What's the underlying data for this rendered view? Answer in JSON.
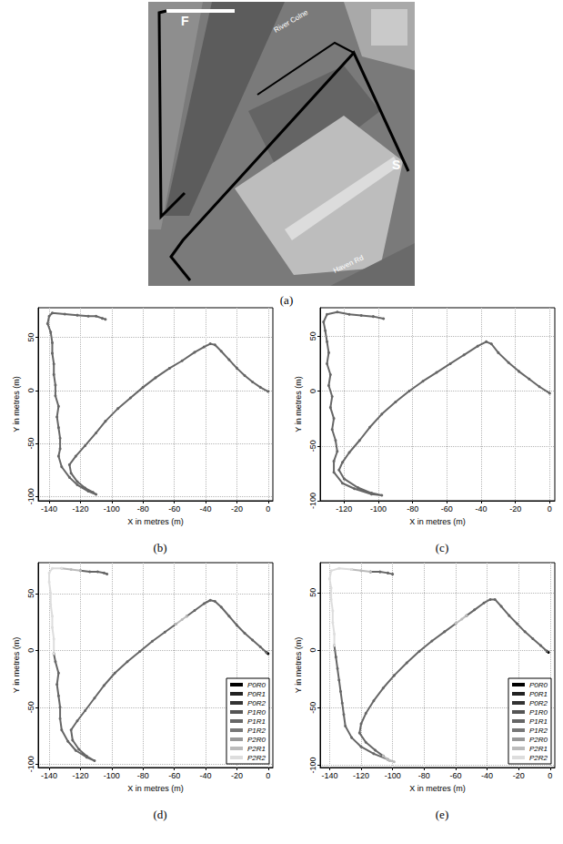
{
  "image": {
    "type": "map",
    "label": "(a)",
    "texts": {
      "finish": "F",
      "start": "S",
      "river": "River Colne",
      "road": "Haven Rd"
    }
  },
  "chart_data": [
    {
      "type": "line",
      "label": "(b)",
      "x_label": "X in metres (m)",
      "y_label": "Y in metres (m)",
      "xlim": [
        -147,
        3
      ],
      "ylim": [
        -104,
        78
      ],
      "xticks": [
        -140,
        -120,
        -100,
        -80,
        -60,
        -40,
        -20,
        0
      ],
      "yticks": [
        -100,
        -50,
        0,
        50
      ],
      "grid": true,
      "marker": "circle",
      "series": [
        {
          "color": "#666666",
          "values": [
            [
              0,
              -1
            ],
            [
              -5,
              3
            ],
            [
              -10,
              8
            ],
            [
              -15,
              14
            ],
            [
              -20,
              21
            ],
            [
              -25,
              29
            ],
            [
              -30,
              37
            ],
            [
              -34,
              43
            ],
            [
              -37,
              44
            ],
            [
              -41,
              41
            ],
            [
              -47,
              36
            ],
            [
              -55,
              28
            ],
            [
              -63,
              21
            ],
            [
              -72,
              12
            ],
            [
              -80,
              3
            ],
            [
              -88,
              -7
            ],
            [
              -96,
              -17
            ],
            [
              -104,
              -29
            ],
            [
              -110,
              -40
            ],
            [
              -117,
              -52
            ],
            [
              -123,
              -62
            ],
            [
              -127,
              -70
            ],
            [
              -126,
              -78
            ],
            [
              -122,
              -86
            ],
            [
              -117,
              -92
            ],
            [
              -112,
              -96
            ],
            [
              -110,
              -98
            ],
            [
              -115,
              -95
            ],
            [
              -122,
              -89
            ],
            [
              -127,
              -82
            ],
            [
              -132,
              -72
            ],
            [
              -134,
              -62
            ],
            [
              -133,
              -55
            ],
            [
              -133,
              -45
            ],
            [
              -134,
              -35
            ],
            [
              -135,
              -25
            ],
            [
              -134,
              -15
            ],
            [
              -136,
              -5
            ],
            [
              -136,
              5
            ],
            [
              -137,
              15
            ],
            [
              -137,
              25
            ],
            [
              -138,
              35
            ],
            [
              -138,
              45
            ],
            [
              -139,
              55
            ],
            [
              -141,
              63
            ],
            [
              -140,
              70
            ],
            [
              -138,
              73
            ],
            [
              -130,
              72
            ],
            [
              -122,
              71
            ],
            [
              -115,
              70
            ],
            [
              -110,
              70
            ],
            [
              -106,
              68
            ],
            [
              -104,
              67
            ]
          ]
        }
      ]
    },
    {
      "type": "line",
      "label": "(c)",
      "x_label": "X in metres (m)",
      "y_label": "Y in metres (m)",
      "xlim": [
        -134,
        3
      ],
      "ylim": [
        -100,
        76
      ],
      "xticks": [
        -120,
        -100,
        -80,
        -60,
        -40,
        -20,
        0
      ],
      "yticks": [
        -100,
        -50,
        0,
        50
      ],
      "grid": true,
      "marker": "circle",
      "series": [
        {
          "color": "#666666",
          "values": [
            [
              0,
              -2
            ],
            [
              -6,
              4
            ],
            [
              -12,
              11
            ],
            [
              -18,
              18
            ],
            [
              -24,
              26
            ],
            [
              -30,
              35
            ],
            [
              -34,
              43
            ],
            [
              -37,
              45
            ],
            [
              -42,
              41
            ],
            [
              -50,
              33
            ],
            [
              -58,
              25
            ],
            [
              -66,
              17
            ],
            [
              -74,
              9
            ],
            [
              -82,
              0
            ],
            [
              -90,
              -10
            ],
            [
              -98,
              -21
            ],
            [
              -105,
              -33
            ],
            [
              -111,
              -45
            ],
            [
              -117,
              -56
            ],
            [
              -121,
              -65
            ],
            [
              -123,
              -72
            ],
            [
              -120,
              -80
            ],
            [
              -112,
              -88
            ],
            [
              -104,
              -93
            ],
            [
              -98,
              -95
            ],
            [
              -104,
              -94
            ],
            [
              -114,
              -89
            ],
            [
              -121,
              -84
            ],
            [
              -126,
              -74
            ],
            [
              -126,
              -64
            ],
            [
              -124,
              -55
            ],
            [
              -125,
              -45
            ],
            [
              -127,
              -35
            ],
            [
              -126,
              -25
            ],
            [
              -128,
              -15
            ],
            [
              -127,
              -5
            ],
            [
              -129,
              5
            ],
            [
              -128,
              15
            ],
            [
              -130,
              25
            ],
            [
              -129,
              35
            ],
            [
              -130,
              45
            ],
            [
              -131,
              55
            ],
            [
              -132,
              63
            ],
            [
              -130,
              70
            ],
            [
              -124,
              72
            ],
            [
              -117,
              70
            ],
            [
              -110,
              69
            ],
            [
              -103,
              68
            ],
            [
              -97,
              66
            ]
          ]
        }
      ]
    },
    {
      "type": "line",
      "label": "(d)",
      "x_label": "X in metres (m)",
      "y_label": "Y in metres (m)",
      "xlim": [
        -147,
        3
      ],
      "ylim": [
        -103,
        77
      ],
      "xticks": [
        -140,
        -120,
        -100,
        -80,
        -60,
        -40,
        -20,
        0
      ],
      "yticks": [
        -100,
        -50,
        0,
        50
      ],
      "grid": true,
      "marker": "circle",
      "legend": "lower right",
      "series": [
        {
          "name": "P0R0",
          "color": "#000000",
          "values": [
            [
              0,
              -3
            ],
            [
              -1,
              -2
            ]
          ]
        },
        {
          "name": "P0R1",
          "color": "#222222",
          "values": []
        },
        {
          "name": "P0R2",
          "color": "#333333",
          "values": []
        },
        {
          "name": "P1R0",
          "color": "#555555",
          "values": []
        },
        {
          "name": "P1R1",
          "color": "#666666",
          "values": [
            [
              -1,
              -2
            ],
            [
              -5,
              3
            ],
            [
              -10,
              9
            ],
            [
              -15,
              15
            ],
            [
              -20,
              22
            ],
            [
              -25,
              30
            ],
            [
              -30,
              38
            ],
            [
              -34,
              43
            ],
            [
              -37,
              44
            ],
            [
              -41,
              41
            ],
            [
              -47,
              35
            ],
            [
              -52,
              30
            ],
            null,
            [
              -59,
              23
            ],
            [
              -66,
              16
            ],
            [
              -74,
              8
            ],
            [
              -82,
              -1
            ],
            [
              -90,
              -10
            ],
            [
              -98,
              -20
            ],
            [
              -105,
              -31
            ],
            [
              -111,
              -42
            ],
            [
              -117,
              -53
            ],
            [
              -122,
              -62
            ],
            [
              -126,
              -70
            ],
            [
              -125,
              -79
            ],
            [
              -121,
              -87
            ],
            [
              -116,
              -93
            ],
            [
              -111,
              -97
            ],
            [
              -116,
              -94
            ],
            [
              -123,
              -88
            ],
            [
              -128,
              -80
            ],
            [
              -132,
              -70
            ],
            [
              -133,
              -60
            ],
            [
              -133,
              -50
            ],
            [
              -134,
              -40
            ],
            [
              -135,
              -30
            ],
            [
              -134,
              -20
            ],
            [
              -136,
              -10
            ],
            [
              -137,
              -3
            ],
            null,
            [
              -120,
              70
            ],
            [
              -114,
              69
            ],
            [
              -109,
              69
            ],
            [
              -105,
              68
            ],
            [
              -103,
              67
            ]
          ]
        },
        {
          "name": "P1R2",
          "color": "#777777",
          "values": []
        },
        {
          "name": "P2R0",
          "color": "#999999",
          "values": []
        },
        {
          "name": "P2R1",
          "color": "#bbbbbb",
          "values": [
            [
              -52,
              30
            ],
            [
              -55,
              27
            ],
            [
              -59,
              23
            ],
            null,
            [
              -132,
              72
            ],
            [
              -126,
              71
            ],
            [
              -120,
              70
            ]
          ]
        },
        {
          "name": "P2R2",
          "color": "#dddddd",
          "values": [
            [
              -137,
              -3
            ],
            [
              -137,
              10
            ],
            [
              -138,
              20
            ],
            [
              -138,
              30
            ],
            [
              -139,
              40
            ],
            [
              -139,
              50
            ],
            [
              -140,
              60
            ],
            [
              -140,
              68
            ],
            [
              -138,
              72
            ],
            [
              -132,
              72
            ]
          ]
        }
      ]
    },
    {
      "type": "line",
      "label": "(e)",
      "x_label": "X in metres (m)",
      "y_label": "Y in metres (m)",
      "xlim": [
        -146,
        3
      ],
      "ylim": [
        -102,
        76
      ],
      "xticks": [
        -140,
        -120,
        -100,
        -80,
        -60,
        -40,
        -20,
        0
      ],
      "yticks": [
        -100,
        -50,
        0,
        50
      ],
      "grid": true,
      "marker": "circle",
      "legend": "lower right",
      "series": [
        {
          "name": "P0R0",
          "color": "#000000",
          "values": [
            [
              -1,
              -2
            ],
            [
              -2,
              -1
            ]
          ]
        },
        {
          "name": "P0R1",
          "color": "#222222",
          "values": []
        },
        {
          "name": "P0R2",
          "color": "#333333",
          "values": []
        },
        {
          "name": "P1R0",
          "color": "#555555",
          "values": []
        },
        {
          "name": "P1R1",
          "color": "#666666",
          "values": [
            [
              -2,
              -1
            ],
            [
              -6,
              4
            ],
            [
              -11,
              10
            ],
            [
              -16,
              16
            ],
            [
              -21,
              23
            ],
            [
              -26,
              30
            ],
            [
              -31,
              38
            ],
            [
              -35,
              44
            ],
            [
              -38,
              44
            ],
            [
              -42,
              41
            ],
            [
              -48,
              35
            ],
            [
              -53,
              30
            ],
            null,
            [
              -60,
              23
            ],
            [
              -67,
              16
            ],
            [
              -75,
              8
            ],
            [
              -83,
              -1
            ],
            [
              -91,
              -11
            ],
            [
              -99,
              -22
            ],
            [
              -106,
              -33
            ],
            [
              -112,
              -44
            ],
            [
              -117,
              -55
            ],
            [
              -120,
              -64
            ],
            [
              -121,
              -72
            ],
            [
              -117,
              -80
            ],
            [
              -111,
              -87
            ],
            [
              -106,
              -92
            ],
            null,
            [
              -103,
              -95
            ],
            [
              -112,
              -90
            ],
            [
              -120,
              -84
            ],
            [
              -126,
              -76
            ],
            [
              -130,
              -66
            ],
            [
              -131,
              -56
            ],
            [
              -132,
              -46
            ],
            [
              -133,
              -36
            ],
            [
              -134,
              -26
            ],
            [
              -135,
              -16
            ],
            [
              -136,
              -6
            ],
            [
              -137,
              4
            ],
            null,
            [
              -114,
              68
            ],
            [
              -108,
              68
            ],
            [
              -103,
              67
            ],
            [
              -100,
              66
            ]
          ]
        },
        {
          "name": "P1R2",
          "color": "#777777",
          "values": []
        },
        {
          "name": "P2R0",
          "color": "#999999",
          "values": []
        },
        {
          "name": "P2R1",
          "color": "#bbbbbb",
          "values": [
            [
              -53,
              30
            ],
            [
              -56,
              27
            ],
            [
              -60,
              23
            ],
            null,
            [
              -106,
              -92
            ],
            [
              -102,
              -96
            ],
            [
              -99,
              -97
            ],
            [
              -103,
              -95
            ],
            null,
            [
              -126,
              70
            ],
            [
              -120,
              69
            ],
            [
              -114,
              68
            ]
          ]
        },
        {
          "name": "P2R2",
          "color": "#dddddd",
          "values": [
            [
              -137,
              4
            ],
            [
              -137,
              14
            ],
            [
              -138,
              24
            ],
            [
              -138,
              34
            ],
            [
              -139,
              44
            ],
            [
              -139,
              54
            ],
            [
              -140,
              62
            ],
            [
              -139,
              69
            ],
            [
              -134,
              71
            ],
            [
              -126,
              70
            ]
          ]
        }
      ]
    }
  ]
}
